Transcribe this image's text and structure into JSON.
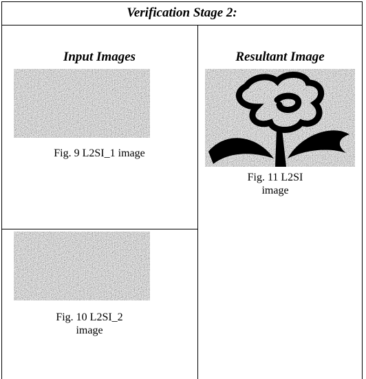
{
  "table": {
    "title": "Verification Stage 2:",
    "headers": [
      "Input Images",
      "Resultant Image"
    ],
    "captions": {
      "fig9": [
        "Fig. 9  L2SI_1 image"
      ],
      "fig10": [
        "Fig. 10  L2SI_2",
        "image"
      ],
      "fig11": [
        "Fig. 11 L2SI",
        "image"
      ]
    }
  }
}
